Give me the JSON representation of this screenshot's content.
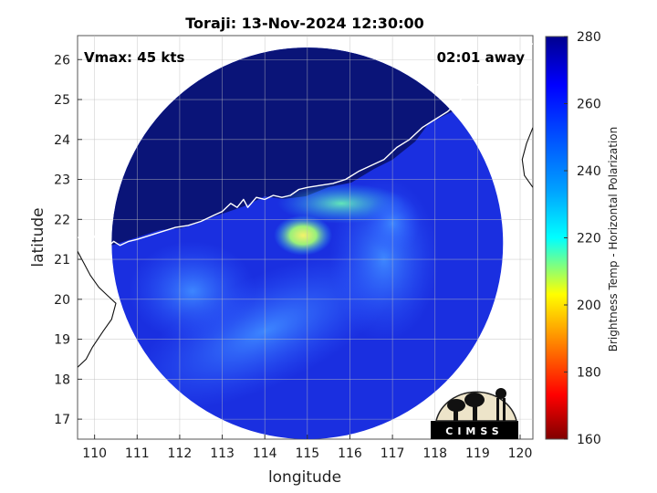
{
  "chart_data": {
    "type": "heatmap",
    "title": "Toraji: 13-Nov-2024 12:30:00",
    "xlabel": "longitude",
    "ylabel": "latitude",
    "xlim": [
      109.6,
      120.3
    ],
    "ylim": [
      16.5,
      26.6
    ],
    "xticks": [
      110,
      111,
      112,
      113,
      114,
      115,
      116,
      117,
      118,
      119,
      120
    ],
    "yticks": [
      17,
      18,
      19,
      20,
      21,
      22,
      23,
      24,
      25,
      26
    ],
    "grid": true,
    "annotations": {
      "left": "Vmax: 45 kts",
      "right": "02:01 away"
    },
    "colorbar": {
      "label": "Brightness Temp - Horizontal Polarization",
      "ticks": [
        160,
        180,
        200,
        220,
        240,
        260,
        280
      ],
      "range": [
        160,
        280
      ],
      "colormap": "jet"
    },
    "swath": {
      "center": [
        115.0,
        21.4
      ],
      "radius_deg_lat": 4.9
    },
    "features": [
      {
        "name": "cold-overcast-north",
        "lon": 114.6,
        "lat": 24.5,
        "temp": 273
      },
      {
        "name": "warm-core-cell",
        "lon": 114.9,
        "lat": 21.6,
        "temp": 225
      },
      {
        "name": "coastal-band",
        "lon": 115.8,
        "lat": 22.3,
        "temp": 238
      },
      {
        "name": "spiral-band-south",
        "lon": 114.0,
        "lat": 18.8,
        "temp": 250
      }
    ],
    "logo": "CIMSS"
  },
  "colors": {
    "background": "#ffffff",
    "outside": "#e6e6e6",
    "ocean": "#1a2fe0",
    "land_cold": "#0a1478",
    "coastline": "#ffffff"
  }
}
